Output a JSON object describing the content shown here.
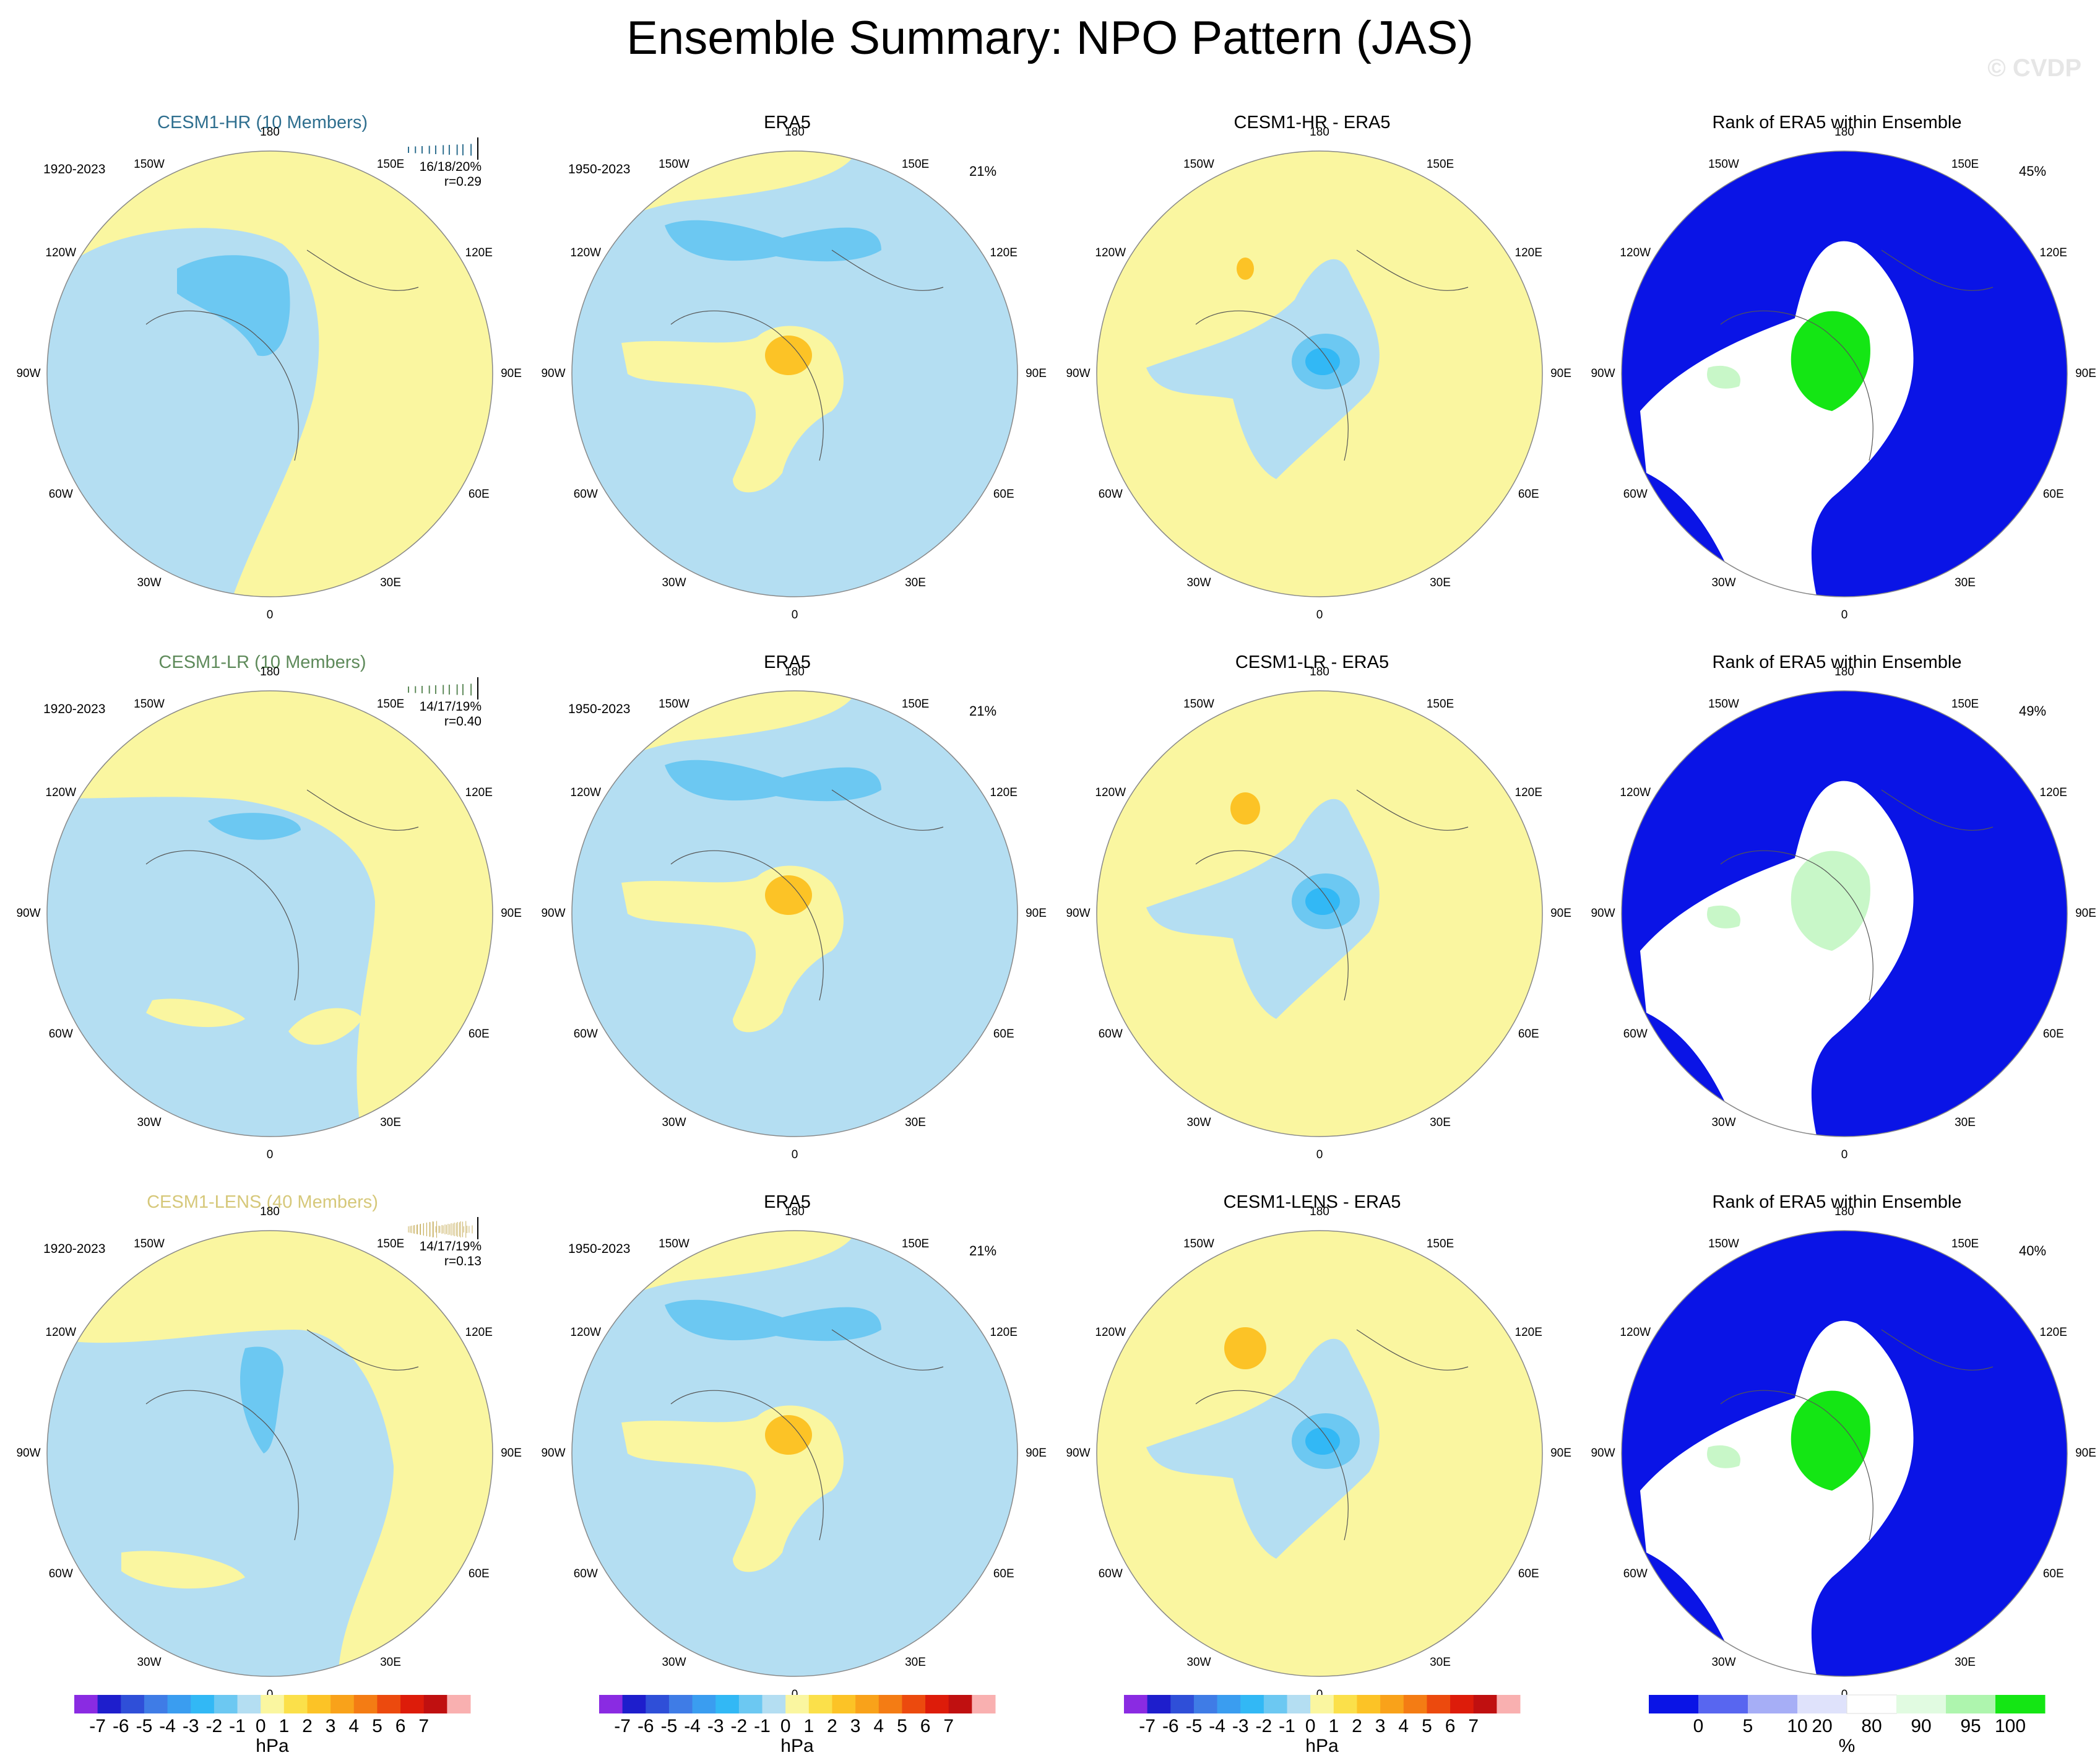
{
  "title": "Ensemble Summary: NPO Pattern (JAS)",
  "watermark": "© CVDP",
  "longitude_labels": [
    "180",
    "150E",
    "120E",
    "90E",
    "60E",
    "30E",
    "0",
    "30W",
    "60W",
    "90W",
    "120W",
    "150W"
  ],
  "rows": [
    {
      "model": {
        "title": "CESM1-HR (10 Members)",
        "title_color": "#2f6f8f",
        "period": "1920-2023",
        "stats_line1": "16/18/20%",
        "stats_line2": "r=0.29",
        "spark_color": "#2f6f8f",
        "spark_lines": 10
      },
      "obs": {
        "title": "ERA5",
        "period": "1950-2023",
        "percent": "21%"
      },
      "diff": {
        "title": "CESM1-HR - ERA5"
      },
      "rank": {
        "title": "Rank of ERA5 within Ensemble",
        "percent": "45%"
      }
    },
    {
      "model": {
        "title": "CESM1-LR (10 Members)",
        "title_color": "#5e8a5a",
        "period": "1920-2023",
        "stats_line1": "14/17/19%",
        "stats_line2": "r=0.40",
        "spark_color": "#5e8a5a",
        "spark_lines": 10
      },
      "obs": {
        "title": "ERA5",
        "period": "1950-2023",
        "percent": "21%"
      },
      "diff": {
        "title": "CESM1-LR - ERA5"
      },
      "rank": {
        "title": "Rank of ERA5 within Ensemble",
        "percent": "49%"
      }
    },
    {
      "model": {
        "title": "CESM1-LENS (40 Members)",
        "title_color": "#d6c87a",
        "period": "1920-2023",
        "stats_line1": "14/17/19%",
        "stats_line2": "r=0.13",
        "spark_color": "#c8b060",
        "spark_lines": 40
      },
      "obs": {
        "title": "ERA5",
        "period": "1950-2023",
        "percent": "21%"
      },
      "diff": {
        "title": "CESM1-LENS - ERA5"
      },
      "rank": {
        "title": "Rank of ERA5 within Ensemble",
        "percent": "40%"
      }
    }
  ],
  "colorbars": {
    "hpa": {
      "labels": [
        "-7",
        "-6",
        "-5",
        "-4",
        "-3",
        "-2",
        "-1",
        "0",
        "1",
        "2",
        "3",
        "4",
        "5",
        "6",
        "7"
      ],
      "units": "hPa",
      "colors": [
        "#8a2be2",
        "#1e1ecc",
        "#2f4fd8",
        "#3f7ce6",
        "#3a9df0",
        "#32b8f5",
        "#6cc8f2",
        "#b4def2",
        "#faf6a0",
        "#fbe04a",
        "#fcc326",
        "#f9a21a",
        "#f47c14",
        "#ec4a0e",
        "#dd1c0a",
        "#c01010",
        "#f9b0b0"
      ]
    },
    "rank": {
      "labels": [
        "0",
        "5",
        "10",
        "20",
        "80",
        "90",
        "95",
        "100"
      ],
      "units": "%",
      "colors": [
        "#0a14e6",
        "#5866f0",
        "#a6aef6",
        "#dfe2fb",
        "#ffffff",
        "#e1fbe1",
        "#aef5ae",
        "#14e614"
      ]
    }
  },
  "chart_data": [
    {
      "type": "heatmap",
      "description": "Polar stereographic maps of NPO sea-level pressure pattern; contour fill levels in hPa",
      "levels": [
        -7,
        -6,
        -5,
        -4,
        -3,
        -2,
        -1,
        0,
        1,
        2,
        3,
        4,
        5,
        6,
        7
      ],
      "units": "hPa"
    },
    {
      "type": "heatmap",
      "description": "Rank of ERA5 within Ensemble, percent",
      "levels": [
        0,
        5,
        10,
        20,
        80,
        90,
        95,
        100
      ],
      "units": "%"
    }
  ]
}
